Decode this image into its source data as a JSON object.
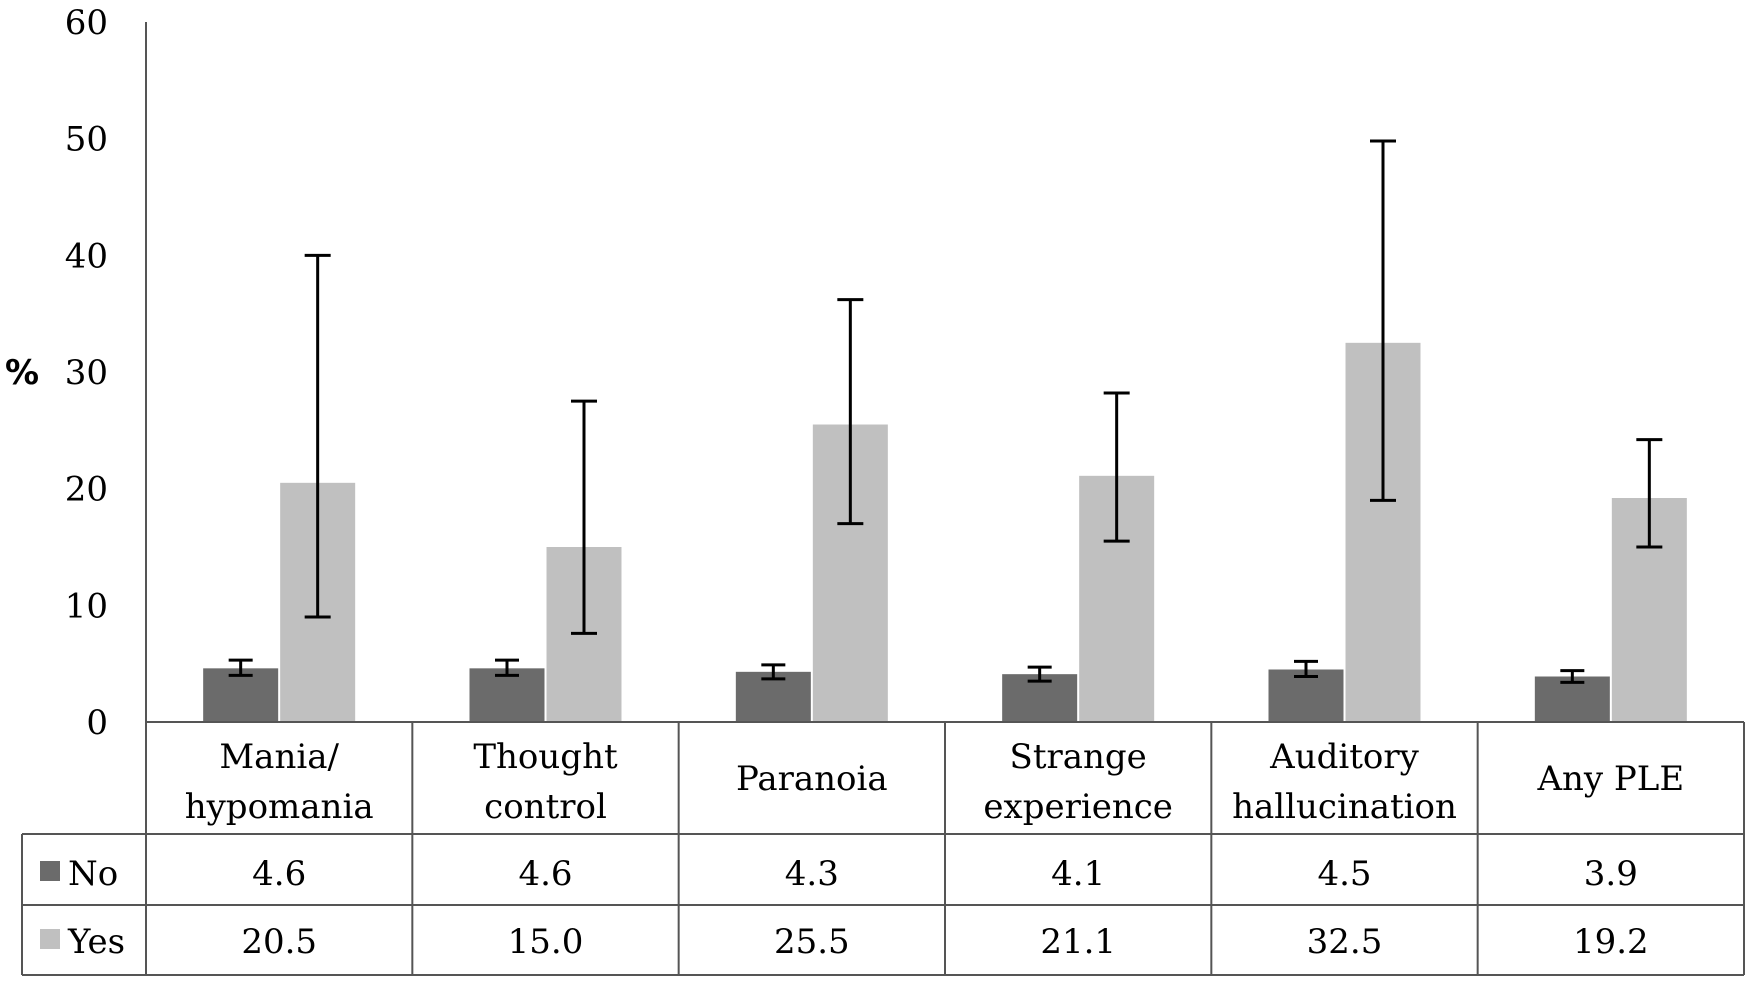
{
  "chart_data": {
    "type": "bar",
    "ylabel": "%",
    "ylim": [
      0,
      60
    ],
    "yticks": [
      0,
      10,
      20,
      30,
      40,
      50,
      60
    ],
    "grid": false,
    "legend": "data-table",
    "categories": [
      [
        "Mania/",
        "hypomania"
      ],
      [
        "Thought",
        "control"
      ],
      [
        "Paranoia"
      ],
      [
        "Strange",
        "experience"
      ],
      [
        "Auditory",
        "hallucination"
      ],
      [
        "Any PLE"
      ]
    ],
    "series": [
      {
        "name": "No",
        "color": "#6b6b6b",
        "values": [
          4.6,
          4.6,
          4.3,
          4.1,
          4.5,
          3.9
        ],
        "labels": [
          "4.6",
          "4.6",
          "4.3",
          "4.1",
          "4.5",
          "3.9"
        ],
        "error_low": [
          4.0,
          4.0,
          3.7,
          3.5,
          3.9,
          3.4
        ],
        "error_high": [
          5.3,
          5.3,
          4.9,
          4.7,
          5.2,
          4.4
        ]
      },
      {
        "name": "Yes",
        "color": "#c0c0c0",
        "values": [
          20.5,
          15.0,
          25.5,
          21.1,
          32.5,
          19.2
        ],
        "labels": [
          "20.5",
          "15.0",
          "25.5",
          "21.1",
          "32.5",
          "19.2"
        ],
        "error_low": [
          9.0,
          7.6,
          17.0,
          15.5,
          19.0,
          15.0
        ],
        "error_high": [
          40.0,
          27.5,
          36.2,
          28.2,
          49.8,
          24.2
        ]
      }
    ]
  }
}
